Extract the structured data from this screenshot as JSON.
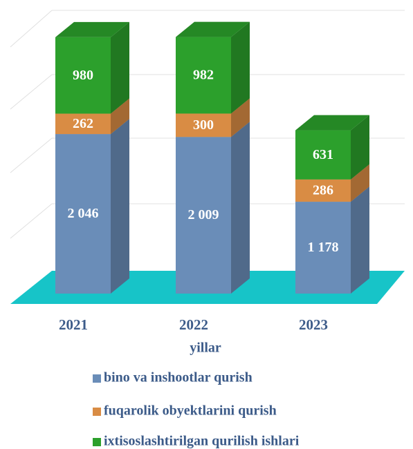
{
  "chart_data": {
    "type": "bar3d_stacked",
    "categories": [
      "2021",
      "2022",
      "2023"
    ],
    "x_label": "yillar",
    "ylim": [
      0,
      3500
    ],
    "series": [
      {
        "name": "bino va inshootlar qurish",
        "color": "#6a8db8",
        "values": [
          2046,
          2009,
          1178
        ],
        "value_labels": [
          "2 046",
          "2 009",
          "1 178"
        ]
      },
      {
        "name": "fuqarolik obyektlarini qurish",
        "color": "#d98c44",
        "values": [
          262,
          300,
          286
        ]
      },
      {
        "name": "ixtisoslashtirilgan qurilish ishlari",
        "color": "#2ca02c",
        "values": [
          980,
          982,
          631
        ]
      }
    ]
  }
}
